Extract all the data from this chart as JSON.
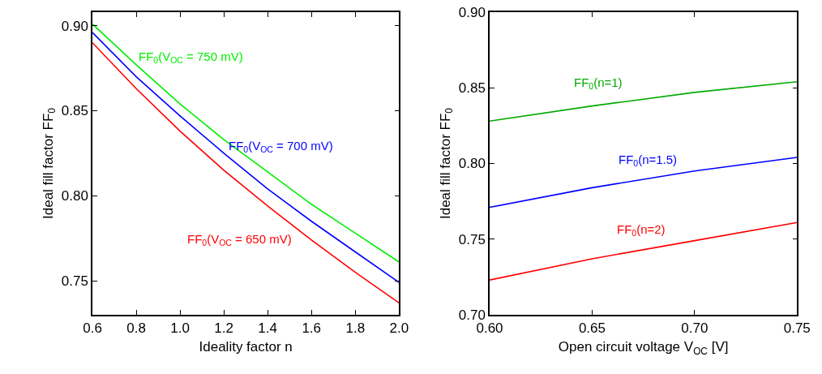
{
  "chart_data": [
    {
      "type": "line",
      "xlabel": "Ideality factor n",
      "ylabel": "Ideal fill factor FF$_{0}$",
      "x": [
        0.6,
        0.8,
        1.0,
        1.2,
        1.4,
        1.6,
        1.8,
        2.0
      ],
      "series": [
        {
          "name": "FF$_{0}$(V$_{OC}$ = 750 mV)",
          "color": "#00ee00",
          "values": [
            0.901,
            0.877,
            0.854,
            0.833,
            0.814,
            0.795,
            0.778,
            0.761
          ]
        },
        {
          "name": "FF$_{0}$(V$_{OC}$ = 700 mV)",
          "color": "#0000ff",
          "values": [
            0.896,
            0.87,
            0.847,
            0.825,
            0.804,
            0.785,
            0.767,
            0.749
          ]
        },
        {
          "name": "FF$_{0}$(V$_{OC}$ = 650 mV)",
          "color": "#ff0000",
          "values": [
            0.89,
            0.863,
            0.838,
            0.815,
            0.794,
            0.774,
            0.755,
            0.737
          ]
        }
      ],
      "xlim": [
        0.6,
        2.0
      ],
      "xticks": [
        {
          "value": 0.6,
          "label": "0.6"
        },
        {
          "value": 0.8,
          "label": "0.8"
        },
        {
          "value": 1.0,
          "label": "1.0"
        },
        {
          "value": 1.2,
          "label": "1.2"
        },
        {
          "value": 1.4,
          "label": "1.4"
        },
        {
          "value": 1.6,
          "label": "1.6"
        },
        {
          "value": 1.8,
          "label": "1.8"
        },
        {
          "value": 2.0,
          "label": "2.0"
        }
      ],
      "ylim": [
        0.73,
        0.908
      ],
      "yticks": [
        {
          "value": 0.75,
          "label": "0.75"
        },
        {
          "value": 0.8,
          "label": "0.80"
        },
        {
          "value": 0.85,
          "label": "0.85"
        },
        {
          "value": 0.9,
          "label": "0.90"
        }
      ],
      "legend": false
    },
    {
      "type": "line",
      "xlabel": "Open circuit voltage V$_{OC}$ [V]",
      "ylabel": "Ideal fill factor FF$_{0}$",
      "x": [
        0.6,
        0.65,
        0.7,
        0.75
      ],
      "series": [
        {
          "name": "FF$_{0}$(n=1)",
          "color": "#00aa00",
          "values": [
            0.828,
            0.838,
            0.847,
            0.854
          ]
        },
        {
          "name": "FF$_{0}$(n=1.5)",
          "color": "#0000ff",
          "values": [
            0.771,
            0.784,
            0.795,
            0.804
          ]
        },
        {
          "name": "FF$_{0}$(n=2)",
          "color": "#ff0000",
          "values": [
            0.723,
            0.737,
            0.749,
            0.761
          ]
        }
      ],
      "xlim": [
        0.6,
        0.75
      ],
      "xticks": [
        {
          "value": 0.6,
          "label": "0.60"
        },
        {
          "value": 0.65,
          "label": "0.65"
        },
        {
          "value": 0.7,
          "label": "0.70"
        },
        {
          "value": 0.75,
          "label": "0.75"
        }
      ],
      "ylim": [
        0.7,
        0.9
      ],
      "yticks": [
        {
          "value": 0.7,
          "label": "0.70"
        },
        {
          "value": 0.75,
          "label": "0.75"
        },
        {
          "value": 0.8,
          "label": "0.80"
        },
        {
          "value": 0.85,
          "label": "0.85"
        },
        {
          "value": 0.9,
          "label": "0.90"
        }
      ],
      "legend": false
    }
  ]
}
